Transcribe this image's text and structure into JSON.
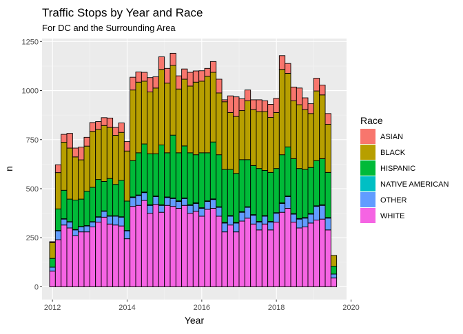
{
  "chart_data": {
    "type": "bar",
    "stacked": true,
    "title": "Traffic Stops by Year and Race",
    "subtitle": "For DC and the Surrounding Area",
    "xlabel": "Year",
    "ylabel": "n",
    "xlim": [
      2011.72,
      2019.88
    ],
    "ylim": [
      -65,
      1265
    ],
    "x_ticks": [
      2012,
      2014,
      2016,
      2018,
      2020
    ],
    "y_ticks": [
      0,
      250,
      500,
      750,
      1000,
      1250
    ],
    "grid": true,
    "legend_position": "right",
    "legend_title": "Race",
    "bin_width": 0.1538,
    "x": [
      2012.0,
      2012.154,
      2012.308,
      2012.462,
      2012.615,
      2012.769,
      2012.923,
      2013.077,
      2013.231,
      2013.385,
      2013.538,
      2013.692,
      2013.846,
      2014.0,
      2014.154,
      2014.308,
      2014.462,
      2014.615,
      2014.769,
      2014.923,
      2015.077,
      2015.231,
      2015.385,
      2015.538,
      2015.692,
      2015.846,
      2016.0,
      2016.154,
      2016.308,
      2016.462,
      2016.615,
      2016.769,
      2016.923,
      2017.077,
      2017.231,
      2017.385,
      2017.538,
      2017.692,
      2017.846,
      2018.0,
      2018.154,
      2018.308,
      2018.462,
      2018.615,
      2018.769,
      2018.923,
      2019.077,
      2019.231,
      2019.385,
      2019.538
    ],
    "series": [
      {
        "name": "WHITE",
        "color": "#F564E3",
        "values": [
          80,
          240,
          315,
          300,
          260,
          280,
          280,
          305,
          330,
          355,
          320,
          315,
          310,
          245,
          410,
          415,
          440,
          375,
          420,
          380,
          415,
          410,
          400,
          415,
          375,
          385,
          360,
          395,
          400,
          360,
          280,
          315,
          280,
          335,
          350,
          320,
          290,
          320,
          290,
          330,
          380,
          400,
          330,
          300,
          305,
          325,
          340,
          345,
          290,
          45
        ]
      },
      {
        "name": "OTHER",
        "color": "#619CFF",
        "values": [
          20,
          45,
          30,
          30,
          30,
          25,
          30,
          25,
          25,
          30,
          40,
          45,
          45,
          40,
          45,
          50,
          40,
          40,
          40,
          35,
          40,
          40,
          35,
          35,
          40,
          40,
          40,
          40,
          45,
          45,
          45,
          45,
          45,
          45,
          55,
          45,
          40,
          40,
          40,
          45,
          45,
          60,
          40,
          45,
          45,
          45,
          70,
          70,
          60,
          20
        ]
      },
      {
        "name": "NATIVE AMERICAN",
        "color": "#00BFC4",
        "values": [
          0,
          2,
          2,
          2,
          2,
          2,
          2,
          2,
          2,
          2,
          2,
          2,
          2,
          2,
          3,
          3,
          3,
          3,
          3,
          3,
          3,
          3,
          3,
          3,
          3,
          3,
          3,
          3,
          3,
          3,
          3,
          3,
          3,
          3,
          3,
          3,
          3,
          3,
          3,
          3,
          3,
          3,
          3,
          3,
          3,
          3,
          3,
          3,
          3,
          0
        ]
      },
      {
        "name": "HISPANIC",
        "color": "#00BA38",
        "values": [
          45,
          110,
          145,
          115,
          150,
          140,
          175,
          175,
          190,
          150,
          190,
          160,
          185,
          150,
          185,
          215,
          245,
          260,
          215,
          305,
          225,
          320,
          245,
          265,
          265,
          245,
          280,
          245,
          290,
          265,
          270,
          235,
          250,
          265,
          240,
          250,
          270,
          230,
          250,
          225,
          245,
          250,
          280,
          255,
          245,
          235,
          230,
          235,
          230,
          40
        ]
      },
      {
        "name": "BLACK",
        "color": "#B79F00",
        "values": [
          80,
          185,
          245,
          260,
          220,
          200,
          230,
          285,
          255,
          285,
          260,
          250,
          245,
          255,
          360,
          360,
          320,
          315,
          335,
          385,
          355,
          355,
          325,
          340,
          340,
          370,
          365,
          390,
          355,
          315,
          345,
          290,
          290,
          250,
          300,
          285,
          290,
          300,
          280,
          285,
          435,
          375,
          295,
          325,
          305,
          275,
          355,
          325,
          245,
          55
        ]
      },
      {
        "name": "ASIAN",
        "color": "#F8766D",
        "values": [
          5,
          40,
          40,
          75,
          45,
          65,
          45,
          45,
          40,
          40,
          48,
          40,
          48,
          48,
          65,
          52,
          45,
          73,
          57,
          64,
          75,
          62,
          67,
          52,
          70,
          57,
          53,
          40,
          55,
          70,
          10,
          85,
          100,
          60,
          55,
          50,
          60,
          55,
          67,
          72,
          70,
          50,
          70,
          85,
          60,
          50,
          65,
          50,
          55,
          0
        ]
      }
    ]
  }
}
